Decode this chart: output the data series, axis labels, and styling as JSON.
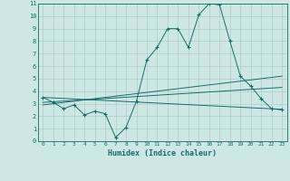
{
  "xlabel": "Humidex (Indice chaleur)",
  "xlim": [
    -0.5,
    23.5
  ],
  "ylim": [
    0,
    11
  ],
  "xticks": [
    0,
    1,
    2,
    3,
    4,
    5,
    6,
    7,
    8,
    9,
    10,
    11,
    12,
    13,
    14,
    15,
    16,
    17,
    18,
    19,
    20,
    21,
    22,
    23
  ],
  "yticks": [
    0,
    1,
    2,
    3,
    4,
    5,
    6,
    7,
    8,
    9,
    10,
    11
  ],
  "bg_color": "#cde8e4",
  "line_color": "#1a6b6b",
  "grid_color": "#b0ccc8",
  "main_x": [
    0,
    1,
    2,
    3,
    4,
    5,
    6,
    7,
    8,
    9,
    10,
    11,
    12,
    13,
    14,
    15,
    16,
    17,
    18,
    19,
    20,
    21,
    22,
    23
  ],
  "main_y": [
    3.5,
    3.1,
    2.6,
    2.9,
    2.1,
    2.4,
    2.2,
    0.3,
    1.1,
    3.2,
    6.5,
    7.5,
    9.0,
    9.0,
    7.5,
    10.1,
    11.0,
    10.9,
    8.0,
    5.2,
    4.4,
    3.4,
    2.6,
    2.5
  ],
  "line2_x": [
    0,
    23
  ],
  "line2_y": [
    3.5,
    2.55
  ],
  "line3_x": [
    0,
    23
  ],
  "line3_y": [
    3.1,
    4.3
  ],
  "line4_x": [
    0,
    23
  ],
  "line4_y": [
    2.9,
    5.2
  ]
}
